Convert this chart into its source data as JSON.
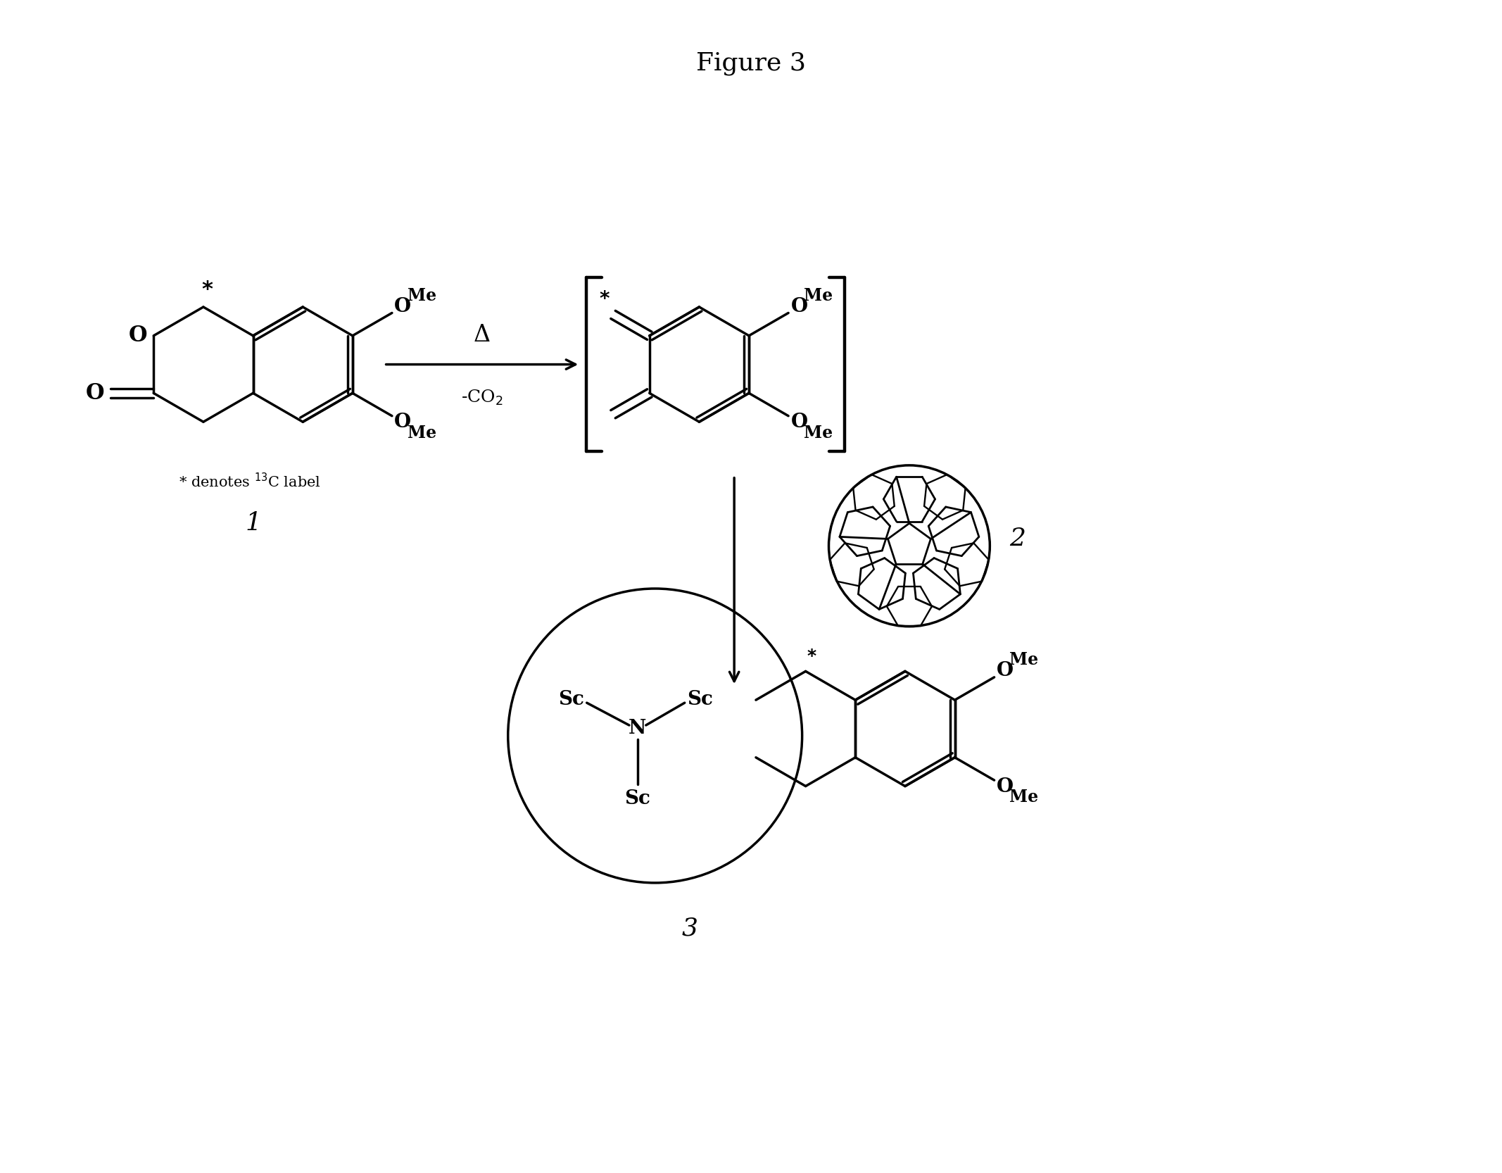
{
  "title": "Figure 3",
  "title_fontsize": 26,
  "background_color": "#ffffff",
  "line_color": "#000000",
  "lw": 2.5,
  "compound1_label": "1",
  "compound2_label": "2",
  "compound3_label": "3"
}
